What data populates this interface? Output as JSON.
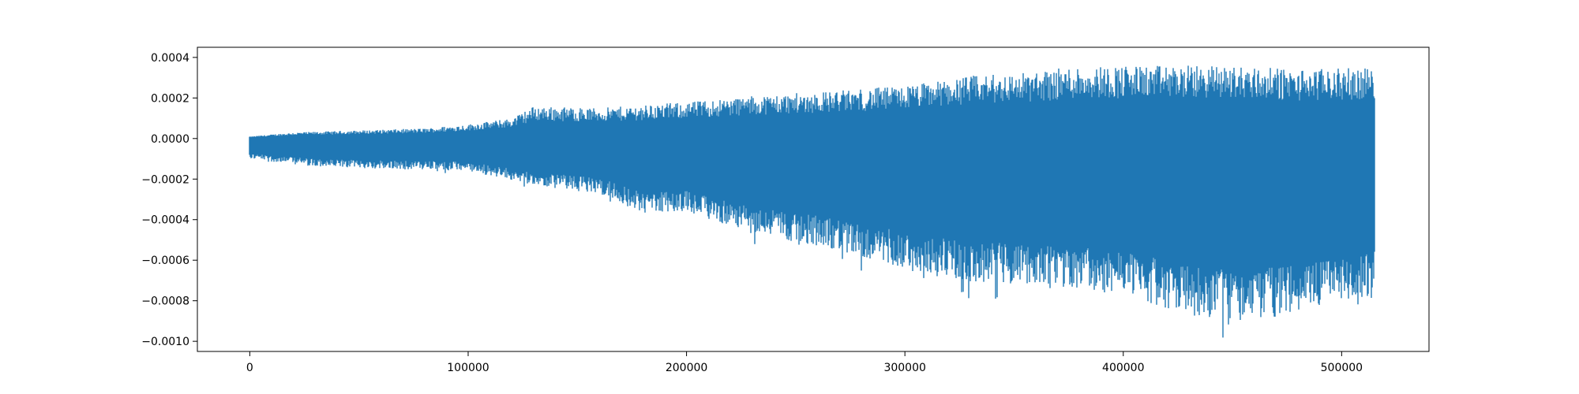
{
  "chart_data": {
    "type": "line",
    "title": "",
    "xlabel": "",
    "ylabel": "",
    "xlim": [
      -24000,
      540000
    ],
    "ylim": [
      -0.00105,
      0.00045
    ],
    "x_ticks": [
      0,
      100000,
      200000,
      300000,
      400000,
      500000
    ],
    "x_tick_labels": [
      "0",
      "100000",
      "200000",
      "300000",
      "400000",
      "500000"
    ],
    "y_ticks": [
      0.0004,
      0.0002,
      0.0,
      -0.0002,
      -0.0004,
      -0.0006,
      -0.0008,
      -0.001
    ],
    "y_tick_labels": [
      "0.0004",
      "0.0002",
      "0.0000",
      "−0.0002",
      "−0.0004",
      "−0.0006",
      "−0.0008",
      "−0.0010"
    ],
    "grid": false,
    "legend": "none",
    "series": [
      {
        "color": "#1f77b4",
        "x_range": [
          0,
          515000
        ],
        "upper_envelope": {
          "x": [
            0,
            20000,
            50000,
            80000,
            100000,
            120000,
            130000,
            160000,
            200000,
            230000,
            260000,
            300000,
            330000,
            360000,
            380000,
            400000,
            450000,
            480000,
            515000
          ],
          "y": [
            1e-05,
            3e-05,
            4e-05,
            5e-05,
            7e-05,
            0.0001,
            0.00016,
            0.00015,
            0.00018,
            0.00021,
            0.00023,
            0.00026,
            0.00031,
            0.00033,
            0.00036,
            0.00036,
            0.00036,
            0.00034,
            0.00035
          ]
        },
        "lower_envelope": {
          "x": [
            0,
            30000,
            60000,
            100000,
            130000,
            160000,
            180000,
            200000,
            230000,
            260000,
            300000,
            330000,
            360000,
            400000,
            430000,
            450000,
            470000,
            490000,
            515000
          ],
          "y": [
            -0.0001,
            -0.00014,
            -0.00015,
            -0.00016,
            -0.00023,
            -0.00027,
            -0.00037,
            -0.00036,
            -0.00047,
            -0.00053,
            -0.00064,
            -0.00071,
            -0.00072,
            -0.00077,
            -0.00087,
            -0.0009,
            -0.00088,
            -0.00084,
            -0.00077
          ]
        }
      }
    ]
  }
}
